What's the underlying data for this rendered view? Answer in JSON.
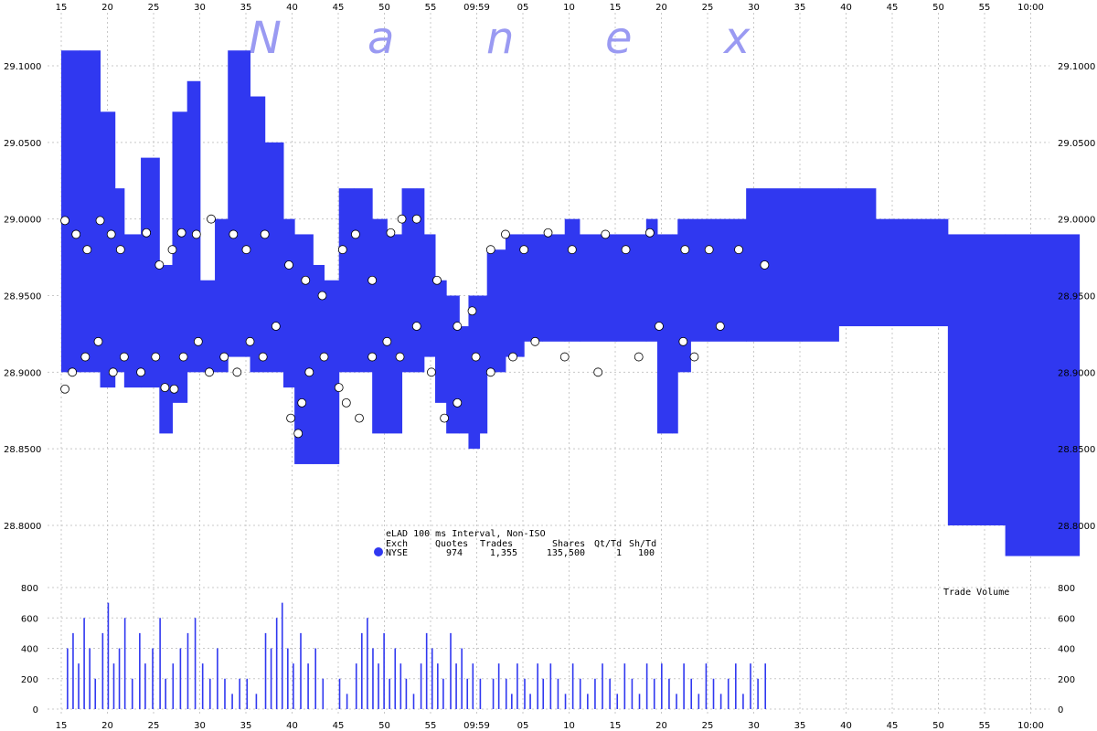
{
  "chart_data": {
    "type": "area",
    "watermark": [
      "N",
      "a",
      "n",
      "e",
      "x"
    ],
    "x_ticks": [
      "15",
      "20",
      "25",
      "30",
      "35",
      "40",
      "45",
      "50",
      "55",
      "09:59",
      "05",
      "10",
      "15",
      "20",
      "25",
      "30",
      "35",
      "40",
      "45",
      "50",
      "55",
      "10:00"
    ],
    "y_ticks": [
      "29.1000",
      "29.0500",
      "29.0000",
      "28.9500",
      "28.9000",
      "28.8500",
      "28.8000"
    ],
    "ylim": [
      28.765,
      29.12
    ],
    "volume_ticks": [
      "800",
      "600",
      "400",
      "200",
      "0"
    ],
    "volume_ylim": [
      0,
      800
    ],
    "volume_label": "Trade Volume",
    "quote_spread": [
      {
        "x": 0.0,
        "bid": 28.9,
        "ask": 29.11
      },
      {
        "x": 1.0,
        "bid": 28.9,
        "ask": 29.11
      },
      {
        "x": 2.1,
        "bid": 28.89,
        "ask": 29.07
      },
      {
        "x": 2.9,
        "bid": 28.9,
        "ask": 29.02
      },
      {
        "x": 3.4,
        "bid": 28.89,
        "ask": 28.99
      },
      {
        "x": 4.3,
        "bid": 28.89,
        "ask": 29.04
      },
      {
        "x": 5.3,
        "bid": 28.86,
        "ask": 28.97
      },
      {
        "x": 6.0,
        "bid": 28.88,
        "ask": 29.07
      },
      {
        "x": 6.8,
        "bid": 28.9,
        "ask": 29.09
      },
      {
        "x": 7.5,
        "bid": 28.9,
        "ask": 28.96
      },
      {
        "x": 8.3,
        "bid": 28.9,
        "ask": 29.0
      },
      {
        "x": 9.0,
        "bid": 28.91,
        "ask": 29.11
      },
      {
        "x": 10.2,
        "bid": 28.9,
        "ask": 29.08
      },
      {
        "x": 11.0,
        "bid": 28.9,
        "ask": 29.05
      },
      {
        "x": 12.0,
        "bid": 28.89,
        "ask": 29.0
      },
      {
        "x": 12.6,
        "bid": 28.84,
        "ask": 28.99
      },
      {
        "x": 13.6,
        "bid": 28.84,
        "ask": 28.97
      },
      {
        "x": 14.2,
        "bid": 28.84,
        "ask": 28.96
      },
      {
        "x": 15.0,
        "bid": 28.9,
        "ask": 29.02
      },
      {
        "x": 15.8,
        "bid": 28.9,
        "ask": 29.02
      },
      {
        "x": 16.8,
        "bid": 28.86,
        "ask": 29.0
      },
      {
        "x": 17.6,
        "bid": 28.86,
        "ask": 28.99
      },
      {
        "x": 18.4,
        "bid": 28.9,
        "ask": 29.02
      },
      {
        "x": 19.2,
        "bid": 28.9,
        "ask": 29.02
      },
      {
        "x": 19.6,
        "bid": 28.91,
        "ask": 28.99
      },
      {
        "x": 20.2,
        "bid": 28.88,
        "ask": 28.96
      },
      {
        "x": 20.8,
        "bid": 28.86,
        "ask": 28.95
      },
      {
        "x": 21.5,
        "bid": 28.86,
        "ask": 28.93
      },
      {
        "x": 22.0,
        "bid": 28.85,
        "ask": 28.95
      },
      {
        "x": 22.6,
        "bid": 28.86,
        "ask": 28.95
      },
      {
        "x": 23.0,
        "bid": 28.9,
        "ask": 28.98
      },
      {
        "x": 24.0,
        "bid": 28.91,
        "ask": 28.99
      },
      {
        "x": 25.0,
        "bid": 28.92,
        "ask": 28.99
      },
      {
        "x": 26.0,
        "bid": 28.92,
        "ask": 28.99
      },
      {
        "x": 27.2,
        "bid": 28.92,
        "ask": 29.0
      },
      {
        "x": 28.0,
        "bid": 28.92,
        "ask": 28.99
      },
      {
        "x": 30.0,
        "bid": 28.92,
        "ask": 28.99
      },
      {
        "x": 31.6,
        "bid": 28.92,
        "ask": 29.0
      },
      {
        "x": 32.2,
        "bid": 28.86,
        "ask": 28.99
      },
      {
        "x": 33.0,
        "bid": 28.86,
        "ask": 28.99
      },
      {
        "x": 33.3,
        "bid": 28.9,
        "ask": 29.0
      },
      {
        "x": 34.0,
        "bid": 28.92,
        "ask": 29.0
      },
      {
        "x": 35.0,
        "bid": 28.92,
        "ask": 29.0
      },
      {
        "x": 37.0,
        "bid": 28.92,
        "ask": 29.02
      },
      {
        "x": 40.0,
        "bid": 28.92,
        "ask": 29.02
      },
      {
        "x": 42.0,
        "bid": 28.93,
        "ask": 29.02
      },
      {
        "x": 44.0,
        "bid": 28.93,
        "ask": 29.0
      },
      {
        "x": 47.0,
        "bid": 28.93,
        "ask": 29.0
      },
      {
        "x": 47.9,
        "bid": 28.8,
        "ask": 28.99
      },
      {
        "x": 50.0,
        "bid": 28.8,
        "ask": 28.99
      },
      {
        "x": 51.0,
        "bid": 28.78,
        "ask": 28.99
      },
      {
        "x": 55.0,
        "bid": 28.78,
        "ask": 28.99
      }
    ],
    "trades": [
      {
        "x": 0.2,
        "y": 28.999
      },
      {
        "x": 0.8,
        "y": 28.99
      },
      {
        "x": 1.4,
        "y": 28.98
      },
      {
        "x": 2.1,
        "y": 28.999
      },
      {
        "x": 2.7,
        "y": 28.99
      },
      {
        "x": 3.2,
        "y": 28.98
      },
      {
        "x": 4.6,
        "y": 28.991
      },
      {
        "x": 5.3,
        "y": 28.97
      },
      {
        "x": 6.0,
        "y": 28.98
      },
      {
        "x": 6.5,
        "y": 28.991
      },
      {
        "x": 7.3,
        "y": 28.99
      },
      {
        "x": 8.1,
        "y": 29.0
      },
      {
        "x": 9.3,
        "y": 28.99
      },
      {
        "x": 10.0,
        "y": 28.98
      },
      {
        "x": 11.0,
        "y": 28.99
      },
      {
        "x": 12.3,
        "y": 28.97
      },
      {
        "x": 13.2,
        "y": 28.96
      },
      {
        "x": 14.1,
        "y": 28.95
      },
      {
        "x": 15.2,
        "y": 28.98
      },
      {
        "x": 15.9,
        "y": 28.99
      },
      {
        "x": 16.8,
        "y": 28.96
      },
      {
        "x": 17.8,
        "y": 28.991
      },
      {
        "x": 18.4,
        "y": 29.0
      },
      {
        "x": 19.2,
        "y": 29.0
      },
      {
        "x": 20.3,
        "y": 28.96
      },
      {
        "x": 21.4,
        "y": 28.93
      },
      {
        "x": 22.2,
        "y": 28.94
      },
      {
        "x": 23.2,
        "y": 28.98
      },
      {
        "x": 24.0,
        "y": 28.99
      },
      {
        "x": 25.0,
        "y": 28.98
      },
      {
        "x": 26.3,
        "y": 28.991
      },
      {
        "x": 27.6,
        "y": 28.98
      },
      {
        "x": 29.4,
        "y": 28.99
      },
      {
        "x": 30.5,
        "y": 28.98
      },
      {
        "x": 31.8,
        "y": 28.991
      },
      {
        "x": 32.3,
        "y": 28.93
      },
      {
        "x": 33.7,
        "y": 28.98
      },
      {
        "x": 35.0,
        "y": 28.98
      },
      {
        "x": 36.6,
        "y": 28.98
      },
      {
        "x": 38.0,
        "y": 28.97
      },
      {
        "x": 0.2,
        "y": 28.889
      },
      {
        "x": 0.6,
        "y": 28.9
      },
      {
        "x": 1.3,
        "y": 28.91
      },
      {
        "x": 2.0,
        "y": 28.92
      },
      {
        "x": 2.8,
        "y": 28.9
      },
      {
        "x": 3.4,
        "y": 28.91
      },
      {
        "x": 4.3,
        "y": 28.9
      },
      {
        "x": 5.1,
        "y": 28.91
      },
      {
        "x": 5.6,
        "y": 28.89
      },
      {
        "x": 6.1,
        "y": 28.889
      },
      {
        "x": 6.6,
        "y": 28.91
      },
      {
        "x": 7.4,
        "y": 28.92
      },
      {
        "x": 8.0,
        "y": 28.9
      },
      {
        "x": 8.8,
        "y": 28.91
      },
      {
        "x": 9.5,
        "y": 28.9
      },
      {
        "x": 10.2,
        "y": 28.92
      },
      {
        "x": 10.9,
        "y": 28.91
      },
      {
        "x": 11.6,
        "y": 28.93
      },
      {
        "x": 12.4,
        "y": 28.87
      },
      {
        "x": 12.8,
        "y": 28.86
      },
      {
        "x": 13.0,
        "y": 28.88
      },
      {
        "x": 13.4,
        "y": 28.9
      },
      {
        "x": 14.2,
        "y": 28.91
      },
      {
        "x": 15.0,
        "y": 28.89
      },
      {
        "x": 15.4,
        "y": 28.88
      },
      {
        "x": 16.1,
        "y": 28.87
      },
      {
        "x": 16.8,
        "y": 28.91
      },
      {
        "x": 17.6,
        "y": 28.92
      },
      {
        "x": 18.3,
        "y": 28.91
      },
      {
        "x": 19.2,
        "y": 28.93
      },
      {
        "x": 20.0,
        "y": 28.9
      },
      {
        "x": 20.7,
        "y": 28.87
      },
      {
        "x": 21.4,
        "y": 28.88
      },
      {
        "x": 22.4,
        "y": 28.91
      },
      {
        "x": 23.2,
        "y": 28.9
      },
      {
        "x": 24.4,
        "y": 28.91
      },
      {
        "x": 25.6,
        "y": 28.92
      },
      {
        "x": 27.2,
        "y": 28.91
      },
      {
        "x": 29.0,
        "y": 28.9
      },
      {
        "x": 31.2,
        "y": 28.91
      },
      {
        "x": 33.6,
        "y": 28.92
      },
      {
        "x": 34.2,
        "y": 28.91
      },
      {
        "x": 35.6,
        "y": 28.93
      }
    ],
    "volume": [
      {
        "x": 0.3,
        "y": 400
      },
      {
        "x": 0.6,
        "y": 500
      },
      {
        "x": 0.9,
        "y": 300
      },
      {
        "x": 1.2,
        "y": 600
      },
      {
        "x": 1.5,
        "y": 400
      },
      {
        "x": 1.8,
        "y": 200
      },
      {
        "x": 2.2,
        "y": 500
      },
      {
        "x": 2.5,
        "y": 700
      },
      {
        "x": 2.8,
        "y": 300
      },
      {
        "x": 3.1,
        "y": 400
      },
      {
        "x": 3.4,
        "y": 600
      },
      {
        "x": 3.8,
        "y": 200
      },
      {
        "x": 4.2,
        "y": 500
      },
      {
        "x": 4.5,
        "y": 300
      },
      {
        "x": 4.9,
        "y": 400
      },
      {
        "x": 5.3,
        "y": 600
      },
      {
        "x": 5.6,
        "y": 200
      },
      {
        "x": 6.0,
        "y": 300
      },
      {
        "x": 6.4,
        "y": 400
      },
      {
        "x": 6.8,
        "y": 500
      },
      {
        "x": 7.2,
        "y": 600
      },
      {
        "x": 7.6,
        "y": 300
      },
      {
        "x": 8.0,
        "y": 200
      },
      {
        "x": 8.4,
        "y": 400
      },
      {
        "x": 8.8,
        "y": 200
      },
      {
        "x": 9.2,
        "y": 100
      },
      {
        "x": 9.6,
        "y": 200
      },
      {
        "x": 10.0,
        "y": 200
      },
      {
        "x": 10.5,
        "y": 100
      },
      {
        "x": 11.0,
        "y": 500
      },
      {
        "x": 11.3,
        "y": 400
      },
      {
        "x": 11.6,
        "y": 600
      },
      {
        "x": 11.9,
        "y": 700
      },
      {
        "x": 12.2,
        "y": 400
      },
      {
        "x": 12.5,
        "y": 300
      },
      {
        "x": 12.9,
        "y": 500
      },
      {
        "x": 13.3,
        "y": 300
      },
      {
        "x": 13.7,
        "y": 400
      },
      {
        "x": 14.1,
        "y": 200
      },
      {
        "x": 15.0,
        "y": 200
      },
      {
        "x": 15.4,
        "y": 100
      },
      {
        "x": 15.9,
        "y": 300
      },
      {
        "x": 16.2,
        "y": 500
      },
      {
        "x": 16.5,
        "y": 600
      },
      {
        "x": 16.8,
        "y": 400
      },
      {
        "x": 17.1,
        "y": 300
      },
      {
        "x": 17.4,
        "y": 500
      },
      {
        "x": 17.7,
        "y": 200
      },
      {
        "x": 18.0,
        "y": 400
      },
      {
        "x": 18.3,
        "y": 300
      },
      {
        "x": 18.6,
        "y": 200
      },
      {
        "x": 19.0,
        "y": 100
      },
      {
        "x": 19.4,
        "y": 300
      },
      {
        "x": 19.7,
        "y": 500
      },
      {
        "x": 20.0,
        "y": 400
      },
      {
        "x": 20.3,
        "y": 300
      },
      {
        "x": 20.6,
        "y": 200
      },
      {
        "x": 21.0,
        "y": 500
      },
      {
        "x": 21.3,
        "y": 300
      },
      {
        "x": 21.6,
        "y": 400
      },
      {
        "x": 21.9,
        "y": 200
      },
      {
        "x": 22.2,
        "y": 300
      },
      {
        "x": 22.6,
        "y": 200
      },
      {
        "x": 23.3,
        "y": 200
      },
      {
        "x": 23.6,
        "y": 300
      },
      {
        "x": 24.0,
        "y": 200
      },
      {
        "x": 24.3,
        "y": 100
      },
      {
        "x": 24.6,
        "y": 300
      },
      {
        "x": 25.0,
        "y": 200
      },
      {
        "x": 25.3,
        "y": 100
      },
      {
        "x": 25.7,
        "y": 300
      },
      {
        "x": 26.0,
        "y": 200
      },
      {
        "x": 26.4,
        "y": 300
      },
      {
        "x": 26.8,
        "y": 200
      },
      {
        "x": 27.2,
        "y": 100
      },
      {
        "x": 27.6,
        "y": 300
      },
      {
        "x": 28.0,
        "y": 200
      },
      {
        "x": 28.4,
        "y": 100
      },
      {
        "x": 28.8,
        "y": 200
      },
      {
        "x": 29.2,
        "y": 300
      },
      {
        "x": 29.6,
        "y": 200
      },
      {
        "x": 30.0,
        "y": 100
      },
      {
        "x": 30.4,
        "y": 300
      },
      {
        "x": 30.8,
        "y": 200
      },
      {
        "x": 31.2,
        "y": 100
      },
      {
        "x": 31.6,
        "y": 300
      },
      {
        "x": 32.0,
        "y": 200
      },
      {
        "x": 32.4,
        "y": 300
      },
      {
        "x": 32.8,
        "y": 200
      },
      {
        "x": 33.2,
        "y": 100
      },
      {
        "x": 33.6,
        "y": 300
      },
      {
        "x": 34.0,
        "y": 200
      },
      {
        "x": 34.4,
        "y": 100
      },
      {
        "x": 34.8,
        "y": 300
      },
      {
        "x": 35.2,
        "y": 200
      },
      {
        "x": 35.6,
        "y": 100
      },
      {
        "x": 36.0,
        "y": 200
      },
      {
        "x": 36.4,
        "y": 300
      },
      {
        "x": 36.8,
        "y": 100
      },
      {
        "x": 37.2,
        "y": 300
      },
      {
        "x": 37.6,
        "y": 200
      },
      {
        "x": 38.0,
        "y": 300
      }
    ],
    "legend": {
      "title": "eLAD 100 ms Interval, Non-ISO",
      "headers": [
        "Exch",
        "Quotes",
        "Trades",
        "Shares",
        "Qt/Td",
        "Sh/Td"
      ],
      "row": {
        "exch": "NYSE",
        "quotes": "974",
        "trades": "1,355",
        "shares": "135,500",
        "qt_td": "1",
        "sh_td": "100"
      },
      "color": "#3038f0"
    },
    "colors": {
      "spread": "#3038f0",
      "volume": "#3038f0",
      "grid": "#c8c8c8",
      "watermark": "#9a9af2"
    }
  }
}
